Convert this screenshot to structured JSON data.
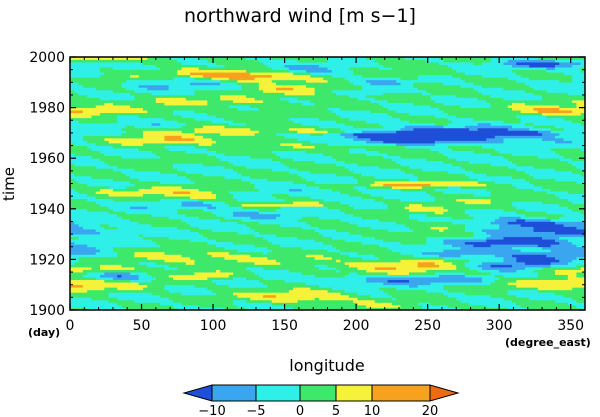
{
  "chart_data": {
    "type": "heatmap",
    "title": "northward wind [m s−1]",
    "xlabel": "longitude",
    "ylabel": "time",
    "x_unit_label": "(degree_east)",
    "y_unit_label": "(day)",
    "xlim": [
      0,
      360
    ],
    "ylim": [
      1900,
      2000
    ],
    "x_ticks": [
      0,
      50,
      100,
      150,
      200,
      250,
      300,
      350
    ],
    "y_ticks": [
      1900,
      1920,
      1940,
      1960,
      1980,
      2000
    ],
    "x_tick_labels": [
      "0",
      "50",
      "100",
      "150",
      "200",
      "250",
      "300",
      "350"
    ],
    "y_tick_labels": [
      "1900",
      "1920",
      "1940",
      "1960",
      "1980",
      "2000"
    ],
    "colorbar": {
      "levels": [
        -10,
        -5,
        0,
        5,
        10,
        20
      ],
      "tick_labels": [
        "−10",
        "−5",
        "0",
        "5",
        "10",
        "20"
      ],
      "colors": [
        "#1f4fd8",
        "#3aa6f0",
        "#2ff0e8",
        "#3ee86a",
        "#f6f23a",
        "#f6a21e",
        "#f06a10"
      ],
      "extend": "both"
    }
  }
}
